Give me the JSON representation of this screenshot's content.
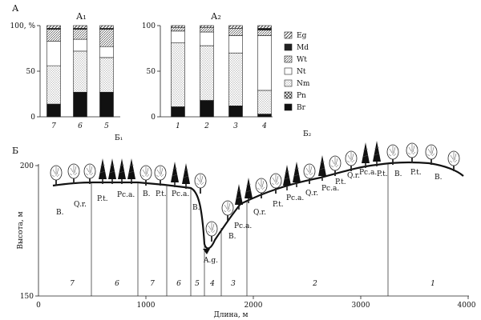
{
  "panel_a": {
    "label": "А",
    "a1_title": "А₁",
    "a2_title": "А₂",
    "y_ticks": [
      "100, %",
      "50",
      "0"
    ],
    "a1_bars": [
      "7",
      "6",
      "5"
    ],
    "a2_bars": [
      "1",
      "2",
      "3",
      "4"
    ],
    "legend": [
      "Eg",
      "Md",
      "Wt",
      "Nt",
      "Nm",
      "Pn",
      "Br"
    ]
  },
  "panel_b": {
    "label": "Б",
    "b1": "Б₁",
    "b2": "Б₂",
    "ylabel": "Высота, м",
    "xlabel": "Длина, м",
    "y_ticks": [
      "200",
      "150"
    ],
    "x_ticks": [
      "0",
      "1000",
      "2000",
      "3000",
      "4000"
    ],
    "zones": [
      "7",
      "6",
      "7",
      "6",
      "5",
      "4",
      "3",
      "2",
      "1"
    ],
    "veg_labels": [
      "B.",
      "Q.r.",
      "P.t.",
      "Pc.a.",
      "B.",
      "P.t.",
      "Pc.a.",
      "B.",
      "A.g.",
      "B.",
      "Pc.a.",
      "Q.r.",
      "P.t.",
      "Pc.a.",
      "Q.r.",
      "Pc.a.",
      "P.t.",
      "Q.r.",
      "Pc.a.",
      "P.t.",
      "B.",
      "P.t.",
      "B."
    ]
  },
  "chart_data": [
    {
      "type": "bar",
      "stacked": true,
      "title": "А₁",
      "categories": [
        "7",
        "6",
        "5"
      ],
      "ylim": [
        0,
        100
      ],
      "series": [
        {
          "name": "Br",
          "values": [
            14,
            27,
            27
          ]
        },
        {
          "name": "Pn",
          "values": [
            0,
            0,
            0
          ]
        },
        {
          "name": "Nm",
          "values": [
            42,
            45,
            38
          ]
        },
        {
          "name": "Nt",
          "values": [
            27,
            13,
            12
          ]
        },
        {
          "name": "Wt",
          "values": [
            13,
            11,
            19
          ]
        },
        {
          "name": "Md",
          "values": [
            1,
            1,
            1
          ]
        },
        {
          "name": "Eg",
          "values": [
            3,
            3,
            3
          ]
        }
      ]
    },
    {
      "type": "bar",
      "stacked": true,
      "title": "А₂",
      "categories": [
        "1",
        "2",
        "3",
        "4"
      ],
      "ylim": [
        0,
        100
      ],
      "series": [
        {
          "name": "Br",
          "values": [
            11,
            18,
            12,
            3
          ]
        },
        {
          "name": "Pn",
          "values": [
            0,
            0,
            0,
            0
          ]
        },
        {
          "name": "Nm",
          "values": [
            70,
            60,
            58,
            26
          ]
        },
        {
          "name": "Nt",
          "values": [
            13,
            15,
            19,
            60
          ]
        },
        {
          "name": "Wt",
          "values": [
            4,
            5,
            8,
            6
          ]
        },
        {
          "name": "Md",
          "values": [
            0,
            0,
            0,
            2
          ]
        },
        {
          "name": "Eg",
          "values": [
            2,
            2,
            3,
            3
          ]
        }
      ]
    }
  ]
}
